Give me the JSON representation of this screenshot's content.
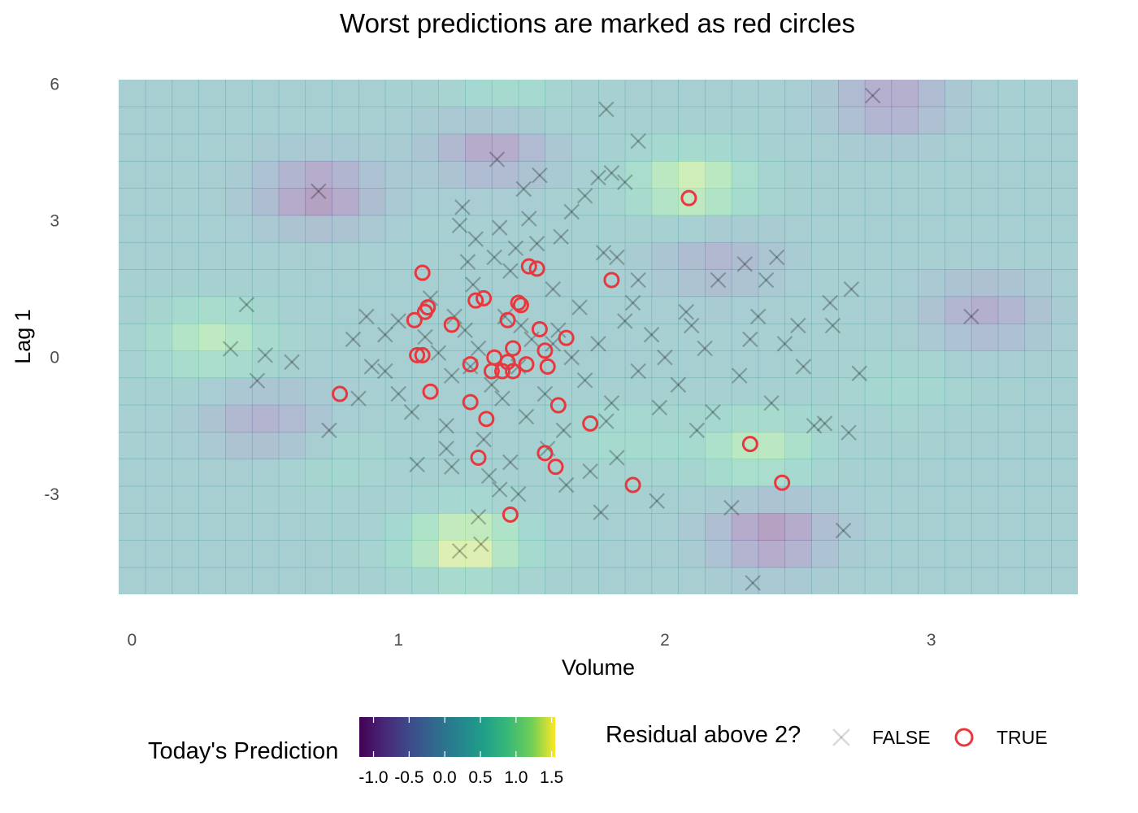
{
  "chart_data": {
    "type": "scatter",
    "title": "Worst predictions are marked as red circles",
    "xlabel": "Volume",
    "ylabel": "Lag 1",
    "xlim": [
      -0.05,
      3.55
    ],
    "ylim": [
      -5.2,
      6.1
    ],
    "x_ticks": [
      0,
      1,
      2,
      3
    ],
    "y_ticks": [
      -3,
      0,
      3,
      6
    ],
    "x_tick_labels": [
      "0",
      "1",
      "2",
      "3"
    ],
    "y_tick_labels": [
      "-3",
      "0",
      "3",
      "6"
    ],
    "grid": false,
    "background_heatmap": {
      "description_variable": "Today's Prediction",
      "colormap": "viridis",
      "range": [
        -1.2,
        1.55
      ],
      "alpha": 0.4,
      "hotspots": [
        {
          "x": 2.1,
          "y": 3.8,
          "value": 1.35
        },
        {
          "x": 1.25,
          "y": -4.1,
          "value": 1.5
        },
        {
          "x": 0.3,
          "y": 0.4,
          "value": 1.1
        },
        {
          "x": 2.35,
          "y": -2.0,
          "value": 1.1
        },
        {
          "x": 0.7,
          "y": 3.6,
          "value": -1.1
        },
        {
          "x": 1.35,
          "y": 4.6,
          "value": -0.9
        },
        {
          "x": 2.4,
          "y": -3.9,
          "value": -1.1
        },
        {
          "x": 2.85,
          "y": 5.6,
          "value": -0.8
        },
        {
          "x": 3.2,
          "y": 1.0,
          "value": -0.7
        },
        {
          "x": 1.4,
          "y": 5.6,
          "value": 0.7
        },
        {
          "x": 1.85,
          "y": -1.8,
          "value": 0.6
        },
        {
          "x": 0.5,
          "y": -1.4,
          "value": -0.6
        },
        {
          "x": 2.2,
          "y": 2.1,
          "value": -0.5
        },
        {
          "x": 2.9,
          "y": -0.6,
          "value": 0.5
        },
        {
          "x": 0.75,
          "y": -2.3,
          "value": 0.5
        }
      ]
    },
    "series": [
      {
        "name": "FALSE",
        "marker": "cross",
        "color": "#000000",
        "alpha": 0.15,
        "points": [
          [
            0.37,
            0.19
          ],
          [
            0.43,
            1.16
          ],
          [
            0.47,
            -0.51
          ],
          [
            0.5,
            0.05
          ],
          [
            0.6,
            -0.1
          ],
          [
            0.7,
            3.65
          ],
          [
            0.83,
            0.4
          ],
          [
            0.9,
            -0.2
          ],
          [
            0.74,
            -1.6
          ],
          [
            0.95,
            -0.3
          ],
          [
            1.24,
            3.3
          ],
          [
            1.23,
            2.9
          ],
          [
            1.29,
            2.6
          ],
          [
            1.37,
            4.35
          ],
          [
            1.38,
            2.85
          ],
          [
            1.47,
            3.7
          ],
          [
            1.49,
            3.05
          ],
          [
            1.53,
            4.0
          ],
          [
            1.61,
            2.65
          ],
          [
            1.65,
            3.2
          ],
          [
            1.7,
            3.55
          ],
          [
            1.75,
            3.95
          ],
          [
            1.78,
            5.45
          ],
          [
            1.8,
            4.05
          ],
          [
            1.85,
            3.85
          ],
          [
            1.9,
            4.75
          ],
          [
            1.77,
            2.3
          ],
          [
            1.82,
            2.2
          ],
          [
            1.9,
            1.7
          ],
          [
            2.2,
            1.7
          ],
          [
            2.3,
            2.05
          ],
          [
            2.38,
            1.7
          ],
          [
            2.42,
            2.2
          ],
          [
            2.62,
            1.2
          ],
          [
            2.7,
            1.5
          ],
          [
            2.78,
            5.75
          ],
          [
            3.15,
            0.9
          ],
          [
            2.73,
            -0.35
          ],
          [
            2.63,
            0.7
          ],
          [
            2.52,
            -0.2
          ],
          [
            2.56,
            -1.5
          ],
          [
            2.6,
            -1.45
          ],
          [
            2.69,
            -1.65
          ],
          [
            2.25,
            -3.3
          ],
          [
            2.67,
            -3.8
          ],
          [
            2.33,
            -4.95
          ],
          [
            1.97,
            -3.15
          ],
          [
            1.76,
            -3.4
          ],
          [
            1.3,
            -3.5
          ],
          [
            1.31,
            -4.1
          ],
          [
            1.23,
            -4.25
          ],
          [
            1.38,
            -2.9
          ],
          [
            1.45,
            -3.0
          ],
          [
            1.2,
            -2.4
          ],
          [
            1.07,
            -2.35
          ],
          [
            1.63,
            -2.8
          ],
          [
            1.72,
            -2.5
          ],
          [
            1.82,
            -2.2
          ],
          [
            2.12,
            -1.6
          ],
          [
            2.18,
            -1.2
          ],
          [
            2.4,
            -1.0
          ],
          [
            2.45,
            0.3
          ],
          [
            2.5,
            0.7
          ],
          [
            2.35,
            0.9
          ],
          [
            1.1,
            0.45
          ],
          [
            1.15,
            0.1
          ],
          [
            1.2,
            -0.4
          ],
          [
            1.25,
            0.6
          ],
          [
            1.3,
            0.2
          ],
          [
            1.35,
            -0.6
          ],
          [
            1.4,
            0.9
          ],
          [
            1.45,
            -0.2
          ],
          [
            1.5,
            0.4
          ],
          [
            1.55,
            -0.8
          ],
          [
            1.6,
            0.6
          ],
          [
            1.65,
            0.0
          ],
          [
            1.7,
            -0.5
          ],
          [
            1.75,
            0.3
          ],
          [
            1.8,
            -1.0
          ],
          [
            1.85,
            0.8
          ],
          [
            1.9,
            -0.3
          ],
          [
            1.95,
            0.5
          ],
          [
            2.0,
            0.0
          ],
          [
            2.05,
            -0.6
          ],
          [
            2.1,
            0.7
          ],
          [
            2.15,
            0.2
          ],
          [
            1.0,
            0.8
          ],
          [
            1.0,
            -0.8
          ],
          [
            0.95,
            0.5
          ],
          [
            1.05,
            -1.2
          ],
          [
            1.12,
            1.3
          ],
          [
            1.18,
            -1.5
          ],
          [
            1.28,
            1.6
          ],
          [
            1.32,
            -1.8
          ],
          [
            1.42,
            1.9
          ],
          [
            1.48,
            -1.3
          ],
          [
            1.58,
            1.5
          ],
          [
            1.62,
            -1.6
          ],
          [
            1.68,
            1.1
          ],
          [
            1.78,
            -1.4
          ],
          [
            1.88,
            1.2
          ],
          [
            1.98,
            -1.1
          ],
          [
            2.08,
            1.0
          ],
          [
            0.85,
            -0.9
          ],
          [
            0.88,
            0.9
          ],
          [
            1.36,
            2.2
          ],
          [
            1.44,
            2.4
          ],
          [
            1.52,
            2.5
          ],
          [
            1.26,
            2.1
          ],
          [
            1.56,
            -2.0
          ],
          [
            1.42,
            -2.3
          ],
          [
            1.34,
            -2.6
          ],
          [
            1.18,
            -2.0
          ],
          [
            2.28,
            -0.4
          ],
          [
            2.32,
            0.4
          ],
          [
            1.58,
            0.3
          ],
          [
            1.46,
            0.7
          ],
          [
            1.39,
            -0.9
          ],
          [
            1.27,
            -0.2
          ],
          [
            1.21,
            0.9
          ]
        ]
      },
      {
        "name": "TRUE",
        "marker": "circle",
        "color": "#e8383d",
        "points": [
          [
            2.09,
            3.5
          ],
          [
            1.09,
            1.86
          ],
          [
            1.49,
            2.0
          ],
          [
            1.52,
            1.95
          ],
          [
            1.8,
            1.7
          ],
          [
            1.29,
            1.25
          ],
          [
            1.32,
            1.3
          ],
          [
            1.45,
            1.2
          ],
          [
            1.46,
            1.15
          ],
          [
            1.11,
            1.1
          ],
          [
            1.1,
            1.0
          ],
          [
            1.06,
            0.82
          ],
          [
            1.2,
            0.72
          ],
          [
            1.41,
            0.82
          ],
          [
            1.53,
            0.62
          ],
          [
            1.63,
            0.43
          ],
          [
            1.43,
            0.2
          ],
          [
            1.55,
            0.15
          ],
          [
            1.07,
            0.05
          ],
          [
            1.09,
            0.05
          ],
          [
            1.36,
            0.0
          ],
          [
            1.41,
            -0.1
          ],
          [
            1.27,
            -0.15
          ],
          [
            1.48,
            -0.15
          ],
          [
            1.56,
            -0.2
          ],
          [
            1.35,
            -0.3
          ],
          [
            1.43,
            -0.3
          ],
          [
            1.39,
            -0.3
          ],
          [
            0.78,
            -0.8
          ],
          [
            1.12,
            -0.75
          ],
          [
            1.27,
            -0.98
          ],
          [
            1.6,
            -1.05
          ],
          [
            1.33,
            -1.35
          ],
          [
            1.72,
            -1.45
          ],
          [
            2.32,
            -1.9
          ],
          [
            1.3,
            -2.2
          ],
          [
            1.55,
            -2.1
          ],
          [
            1.59,
            -2.4
          ],
          [
            1.88,
            -2.8
          ],
          [
            2.44,
            -2.75
          ],
          [
            1.42,
            -3.45
          ]
        ]
      }
    ],
    "legends": {
      "fill": {
        "title": "Today's Prediction",
        "ticks": [
          -1.0,
          -0.5,
          0.0,
          0.5,
          1.0,
          1.5
        ],
        "tick_labels": [
          "-1.0",
          "-0.5",
          "0.0",
          "0.5",
          "1.0",
          "1.5"
        ]
      },
      "shape": {
        "title": "Residual above 2?",
        "entries": [
          "FALSE",
          "TRUE"
        ]
      }
    }
  }
}
